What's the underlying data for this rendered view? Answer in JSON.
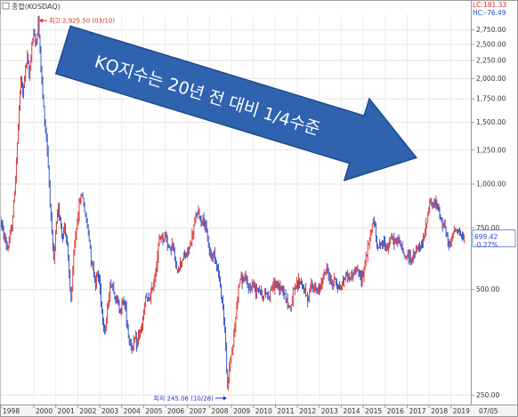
{
  "window": {
    "title": "종합(KOSDAQ)"
  },
  "readouts": {
    "lc": "LC:181.33",
    "hc": "HC:-76.49"
  },
  "badge": {
    "value": "699.42",
    "change": "-0.27%"
  },
  "annotation": {
    "text": "KQ지수는 20년 전 대비 1/4수준",
    "fill": "#2f63b0",
    "stroke": "#1e4a8c"
  },
  "colors": {
    "up": "#d92b2b",
    "down": "#2747c8",
    "marker": "#d92b2b",
    "low_marker": "#2431c8"
  },
  "chart_data": {
    "type": "candlestick",
    "title": "종합(KOSDAQ)",
    "scale": "log",
    "ylim": [
      235,
      3050
    ],
    "y_ticks": [
      {
        "v": 2750,
        "label": "2,750.00"
      },
      {
        "v": 2500,
        "label": "2,500.00"
      },
      {
        "v": 2250,
        "label": "2,250.00"
      },
      {
        "v": 2000,
        "label": "2,000.00"
      },
      {
        "v": 1750,
        "label": "1,750.00"
      },
      {
        "v": 1500,
        "label": "1,500.00"
      },
      {
        "v": 1250,
        "label": "1,250.00"
      },
      {
        "v": 1000,
        "label": "1,000.00"
      },
      {
        "v": 750,
        "label": "750.00"
      },
      {
        "v": 500,
        "label": "500.00"
      },
      {
        "v": 250,
        "label": "250.00"
      }
    ],
    "x_range": [
      1998.5,
      2019.9
    ],
    "x_ticks": [
      {
        "t": 1998.5,
        "label": "1998"
      },
      {
        "t": 2000.0,
        "label": "2000"
      },
      {
        "t": 2001.0,
        "label": "2001"
      },
      {
        "t": 2002.0,
        "label": "2002"
      },
      {
        "t": 2003.0,
        "label": "2003"
      },
      {
        "t": 2004.0,
        "label": "2004"
      },
      {
        "t": 2005.0,
        "label": "2005"
      },
      {
        "t": 2006.0,
        "label": "2006"
      },
      {
        "t": 2007.0,
        "label": "2007"
      },
      {
        "t": 2008.0,
        "label": "2008"
      },
      {
        "t": 2009.0,
        "label": "2009"
      },
      {
        "t": 2010.0,
        "label": "2010"
      },
      {
        "t": 2011.0,
        "label": "2011"
      },
      {
        "t": 2012.0,
        "label": "2012"
      },
      {
        "t": 2013.0,
        "label": "2013"
      },
      {
        "t": 2014.0,
        "label": "2014"
      },
      {
        "t": 2015.0,
        "label": "2015"
      },
      {
        "t": 2016.0,
        "label": "2016"
      },
      {
        "t": 2017.0,
        "label": "2017"
      },
      {
        "t": 2018.0,
        "label": "2018"
      },
      {
        "t": 2019.0,
        "label": "2019"
      }
    ],
    "future_label": "07/05",
    "high": {
      "t": 2000.2,
      "value": 2925.5,
      "label": "최고 2,925.50 (03/10)"
    },
    "low": {
      "t": 2008.83,
      "value": 245.06,
      "label": "최저 245.06 (10/28)"
    },
    "last": {
      "t": 2019.6,
      "value": 699.42,
      "change_pct": -0.27
    },
    "series": [
      {
        "t": 1998.5,
        "v": 790
      },
      {
        "t": 1998.6,
        "v": 720
      },
      {
        "t": 1998.7,
        "v": 690
      },
      {
        "t": 1998.8,
        "v": 650
      },
      {
        "t": 1998.9,
        "v": 700
      },
      {
        "t": 1999.0,
        "v": 760
      },
      {
        "t": 1999.1,
        "v": 900
      },
      {
        "t": 1999.2,
        "v": 1150
      },
      {
        "t": 1999.3,
        "v": 1500
      },
      {
        "t": 1999.4,
        "v": 2000
      },
      {
        "t": 1999.5,
        "v": 1800
      },
      {
        "t": 1999.6,
        "v": 2100
      },
      {
        "t": 1999.7,
        "v": 2300
      },
      {
        "t": 1999.8,
        "v": 2000
      },
      {
        "t": 1999.9,
        "v": 2500
      },
      {
        "t": 2000.0,
        "v": 2700
      },
      {
        "t": 2000.1,
        "v": 2500
      },
      {
        "t": 2000.2,
        "v": 2900
      },
      {
        "t": 2000.3,
        "v": 2300
      },
      {
        "t": 2000.4,
        "v": 1800
      },
      {
        "t": 2000.5,
        "v": 1500
      },
      {
        "t": 2000.6,
        "v": 1300
      },
      {
        "t": 2000.7,
        "v": 1000
      },
      {
        "t": 2000.8,
        "v": 750
      },
      {
        "t": 2000.9,
        "v": 600
      },
      {
        "t": 2001.0,
        "v": 730
      },
      {
        "t": 2001.1,
        "v": 850
      },
      {
        "t": 2001.2,
        "v": 800
      },
      {
        "t": 2001.3,
        "v": 700
      },
      {
        "t": 2001.4,
        "v": 760
      },
      {
        "t": 2001.5,
        "v": 700
      },
      {
        "t": 2001.6,
        "v": 560
      },
      {
        "t": 2001.7,
        "v": 460
      },
      {
        "t": 2001.8,
        "v": 600
      },
      {
        "t": 2001.9,
        "v": 720
      },
      {
        "t": 2002.0,
        "v": 800
      },
      {
        "t": 2002.1,
        "v": 900
      },
      {
        "t": 2002.2,
        "v": 940
      },
      {
        "t": 2002.3,
        "v": 850
      },
      {
        "t": 2002.4,
        "v": 780
      },
      {
        "t": 2002.5,
        "v": 720
      },
      {
        "t": 2002.6,
        "v": 620
      },
      {
        "t": 2002.7,
        "v": 580
      },
      {
        "t": 2002.8,
        "v": 520
      },
      {
        "t": 2002.9,
        "v": 560
      },
      {
        "t": 2003.0,
        "v": 520
      },
      {
        "t": 2003.1,
        "v": 440
      },
      {
        "t": 2003.2,
        "v": 380
      },
      {
        "t": 2003.3,
        "v": 400
      },
      {
        "t": 2003.4,
        "v": 470
      },
      {
        "t": 2003.5,
        "v": 520
      },
      {
        "t": 2003.6,
        "v": 510
      },
      {
        "t": 2003.7,
        "v": 480
      },
      {
        "t": 2003.8,
        "v": 460
      },
      {
        "t": 2003.9,
        "v": 440
      },
      {
        "t": 2004.0,
        "v": 450
      },
      {
        "t": 2004.1,
        "v": 470
      },
      {
        "t": 2004.2,
        "v": 430
      },
      {
        "t": 2004.3,
        "v": 370
      },
      {
        "t": 2004.4,
        "v": 350
      },
      {
        "t": 2004.5,
        "v": 340
      },
      {
        "t": 2004.6,
        "v": 360
      },
      {
        "t": 2004.7,
        "v": 350
      },
      {
        "t": 2004.8,
        "v": 380
      },
      {
        "t": 2004.9,
        "v": 380
      },
      {
        "t": 2005.0,
        "v": 420
      },
      {
        "t": 2005.1,
        "v": 480
      },
      {
        "t": 2005.2,
        "v": 460
      },
      {
        "t": 2005.3,
        "v": 480
      },
      {
        "t": 2005.4,
        "v": 500
      },
      {
        "t": 2005.5,
        "v": 540
      },
      {
        "t": 2005.6,
        "v": 600
      },
      {
        "t": 2005.7,
        "v": 680
      },
      {
        "t": 2005.8,
        "v": 720
      },
      {
        "t": 2005.9,
        "v": 690
      },
      {
        "t": 2006.0,
        "v": 720
      },
      {
        "t": 2006.1,
        "v": 680
      },
      {
        "t": 2006.2,
        "v": 640
      },
      {
        "t": 2006.3,
        "v": 680
      },
      {
        "t": 2006.4,
        "v": 620
      },
      {
        "t": 2006.5,
        "v": 560
      },
      {
        "t": 2006.6,
        "v": 580
      },
      {
        "t": 2006.7,
        "v": 600
      },
      {
        "t": 2006.8,
        "v": 620
      },
      {
        "t": 2006.9,
        "v": 620
      },
      {
        "t": 2007.0,
        "v": 640
      },
      {
        "t": 2007.1,
        "v": 660
      },
      {
        "t": 2007.2,
        "v": 700
      },
      {
        "t": 2007.3,
        "v": 760
      },
      {
        "t": 2007.4,
        "v": 820
      },
      {
        "t": 2007.5,
        "v": 830
      },
      {
        "t": 2007.6,
        "v": 780
      },
      {
        "t": 2007.7,
        "v": 800
      },
      {
        "t": 2007.8,
        "v": 760
      },
      {
        "t": 2007.9,
        "v": 700
      },
      {
        "t": 2008.0,
        "v": 640
      },
      {
        "t": 2008.1,
        "v": 620
      },
      {
        "t": 2008.2,
        "v": 640
      },
      {
        "t": 2008.3,
        "v": 600
      },
      {
        "t": 2008.4,
        "v": 560
      },
      {
        "t": 2008.5,
        "v": 500
      },
      {
        "t": 2008.6,
        "v": 460
      },
      {
        "t": 2008.7,
        "v": 380
      },
      {
        "t": 2008.8,
        "v": 280
      },
      {
        "t": 2008.83,
        "v": 250
      },
      {
        "t": 2008.9,
        "v": 300
      },
      {
        "t": 2009.0,
        "v": 330
      },
      {
        "t": 2009.1,
        "v": 360
      },
      {
        "t": 2009.2,
        "v": 420
      },
      {
        "t": 2009.3,
        "v": 500
      },
      {
        "t": 2009.4,
        "v": 540
      },
      {
        "t": 2009.5,
        "v": 530
      },
      {
        "t": 2009.6,
        "v": 540
      },
      {
        "t": 2009.7,
        "v": 520
      },
      {
        "t": 2009.8,
        "v": 500
      },
      {
        "t": 2009.9,
        "v": 510
      },
      {
        "t": 2010.0,
        "v": 520
      },
      {
        "t": 2010.1,
        "v": 500
      },
      {
        "t": 2010.2,
        "v": 510
      },
      {
        "t": 2010.3,
        "v": 500
      },
      {
        "t": 2010.4,
        "v": 480
      },
      {
        "t": 2010.5,
        "v": 480
      },
      {
        "t": 2010.6,
        "v": 490
      },
      {
        "t": 2010.7,
        "v": 480
      },
      {
        "t": 2010.8,
        "v": 500
      },
      {
        "t": 2010.9,
        "v": 510
      },
      {
        "t": 2011.0,
        "v": 520
      },
      {
        "t": 2011.1,
        "v": 510
      },
      {
        "t": 2011.2,
        "v": 500
      },
      {
        "t": 2011.3,
        "v": 510
      },
      {
        "t": 2011.4,
        "v": 490
      },
      {
        "t": 2011.5,
        "v": 470
      },
      {
        "t": 2011.6,
        "v": 450
      },
      {
        "t": 2011.7,
        "v": 440
      },
      {
        "t": 2011.8,
        "v": 490
      },
      {
        "t": 2011.9,
        "v": 500
      },
      {
        "t": 2012.0,
        "v": 520
      },
      {
        "t": 2012.1,
        "v": 530
      },
      {
        "t": 2012.2,
        "v": 520
      },
      {
        "t": 2012.3,
        "v": 500
      },
      {
        "t": 2012.4,
        "v": 480
      },
      {
        "t": 2012.5,
        "v": 470
      },
      {
        "t": 2012.6,
        "v": 510
      },
      {
        "t": 2012.7,
        "v": 520
      },
      {
        "t": 2012.8,
        "v": 500
      },
      {
        "t": 2012.9,
        "v": 490
      },
      {
        "t": 2013.0,
        "v": 500
      },
      {
        "t": 2013.1,
        "v": 530
      },
      {
        "t": 2013.2,
        "v": 550
      },
      {
        "t": 2013.3,
        "v": 570
      },
      {
        "t": 2013.4,
        "v": 560
      },
      {
        "t": 2013.5,
        "v": 530
      },
      {
        "t": 2013.6,
        "v": 520
      },
      {
        "t": 2013.7,
        "v": 540
      },
      {
        "t": 2013.8,
        "v": 520
      },
      {
        "t": 2013.9,
        "v": 500
      },
      {
        "t": 2014.0,
        "v": 510
      },
      {
        "t": 2014.1,
        "v": 530
      },
      {
        "t": 2014.2,
        "v": 550
      },
      {
        "t": 2014.3,
        "v": 550
      },
      {
        "t": 2014.4,
        "v": 540
      },
      {
        "t": 2014.5,
        "v": 550
      },
      {
        "t": 2014.6,
        "v": 560
      },
      {
        "t": 2014.7,
        "v": 570
      },
      {
        "t": 2014.8,
        "v": 550
      },
      {
        "t": 2014.9,
        "v": 540
      },
      {
        "t": 2015.0,
        "v": 560
      },
      {
        "t": 2015.1,
        "v": 610
      },
      {
        "t": 2015.2,
        "v": 650
      },
      {
        "t": 2015.3,
        "v": 700
      },
      {
        "t": 2015.4,
        "v": 760
      },
      {
        "t": 2015.5,
        "v": 780
      },
      {
        "t": 2015.6,
        "v": 690
      },
      {
        "t": 2015.7,
        "v": 660
      },
      {
        "t": 2015.8,
        "v": 680
      },
      {
        "t": 2015.9,
        "v": 670
      },
      {
        "t": 2016.0,
        "v": 680
      },
      {
        "t": 2016.1,
        "v": 660
      },
      {
        "t": 2016.2,
        "v": 680
      },
      {
        "t": 2016.3,
        "v": 700
      },
      {
        "t": 2016.4,
        "v": 690
      },
      {
        "t": 2016.5,
        "v": 680
      },
      {
        "t": 2016.6,
        "v": 700
      },
      {
        "t": 2016.7,
        "v": 670
      },
      {
        "t": 2016.8,
        "v": 640
      },
      {
        "t": 2016.9,
        "v": 620
      },
      {
        "t": 2017.0,
        "v": 630
      },
      {
        "t": 2017.1,
        "v": 620
      },
      {
        "t": 2017.2,
        "v": 610
      },
      {
        "t": 2017.3,
        "v": 620
      },
      {
        "t": 2017.4,
        "v": 640
      },
      {
        "t": 2017.5,
        "v": 660
      },
      {
        "t": 2017.6,
        "v": 650
      },
      {
        "t": 2017.7,
        "v": 680
      },
      {
        "t": 2017.8,
        "v": 720
      },
      {
        "t": 2017.9,
        "v": 790
      },
      {
        "t": 2018.0,
        "v": 860
      },
      {
        "t": 2018.05,
        "v": 920
      },
      {
        "t": 2018.1,
        "v": 880
      },
      {
        "t": 2018.2,
        "v": 870
      },
      {
        "t": 2018.3,
        "v": 880
      },
      {
        "t": 2018.4,
        "v": 860
      },
      {
        "t": 2018.5,
        "v": 800
      },
      {
        "t": 2018.6,
        "v": 780
      },
      {
        "t": 2018.7,
        "v": 780
      },
      {
        "t": 2018.8,
        "v": 700
      },
      {
        "t": 2018.9,
        "v": 660
      },
      {
        "t": 2019.0,
        "v": 680
      },
      {
        "t": 2019.1,
        "v": 730
      },
      {
        "t": 2019.2,
        "v": 750
      },
      {
        "t": 2019.3,
        "v": 740
      },
      {
        "t": 2019.4,
        "v": 720
      },
      {
        "t": 2019.5,
        "v": 700
      },
      {
        "t": 2019.6,
        "v": 699.42
      }
    ]
  }
}
